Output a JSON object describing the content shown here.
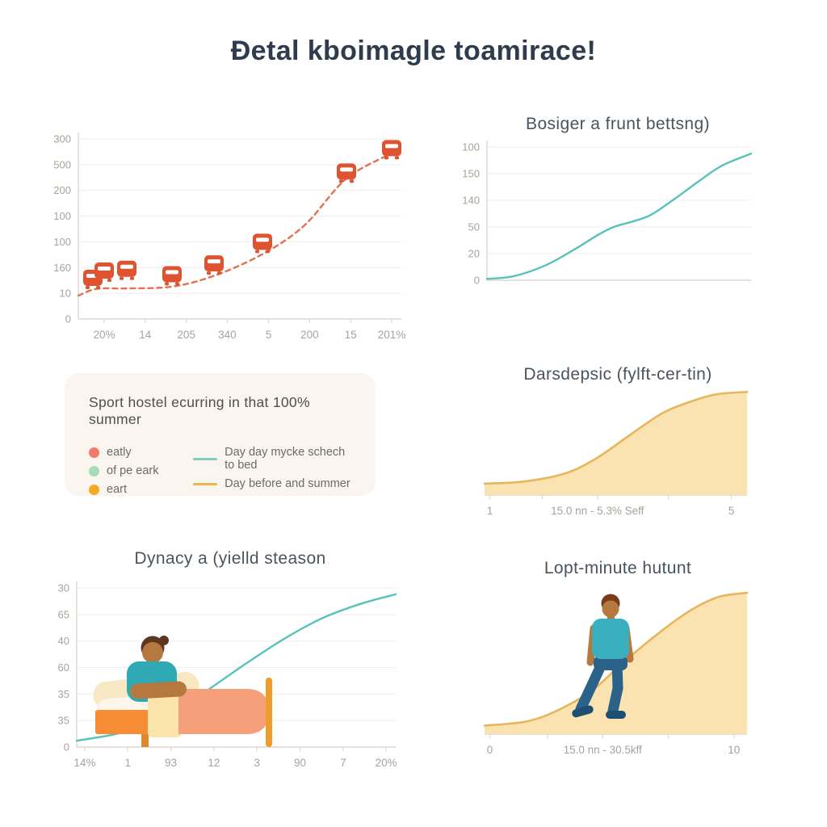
{
  "page": {
    "title": "Ɖetal kboimagle toamirace!"
  },
  "colors": {
    "background": "#ffffff",
    "title": "#2e3c4e",
    "chart_title": "#4a545e",
    "tick_label": "#a8a29a",
    "gridline": "#f1eeea",
    "axis": "#ddd7d0",
    "bus_line": "#e2714f",
    "bus_body": "#df5330",
    "teal_line": "#56c2ba",
    "area_fill": "#fae3b0",
    "area_stroke": "#e7b65c",
    "legend_bg": "#faf5ee"
  },
  "legend": {
    "title": "Sport hostel ecurring in that 100% summer",
    "dot_items": [
      {
        "label": "eatly",
        "color": "#f4796b"
      },
      {
        "label": "of pe eark",
        "color": "#a7dcb9"
      },
      {
        "label": "eart",
        "color": "#f5a823"
      }
    ],
    "line_items": [
      {
        "label": "Day day mycke schech to bed",
        "color": "#82cec5"
      },
      {
        "label": "Day before and summer",
        "color": "#f2b14e"
      }
    ]
  },
  "chart_data": [
    {
      "id": "bus",
      "type": "scatter",
      "title": "",
      "y_ticks": [
        "300",
        "500",
        "200",
        "100",
        "100",
        "160",
        "10",
        "0"
      ],
      "x_ticks": [
        "20%",
        "14",
        "205",
        "340",
        "5",
        "200",
        "15",
        "201%"
      ],
      "x_tick_pos": [
        8,
        20.7,
        33.4,
        46.1,
        58.9,
        71.6,
        84.3,
        97
      ],
      "curve": [
        [
          0,
          13
        ],
        [
          4,
          16
        ],
        [
          7.5,
          17
        ],
        [
          15,
          17
        ],
        [
          29,
          18
        ],
        [
          42,
          24
        ],
        [
          57,
          36
        ],
        [
          70,
          52
        ],
        [
          83,
          78
        ],
        [
          97,
          92
        ]
      ],
      "points": [
        [
          4.5,
          22
        ],
        [
          8,
          26
        ],
        [
          15,
          27
        ],
        [
          29,
          24
        ],
        [
          42,
          30
        ],
        [
          57,
          42
        ],
        [
          83,
          81
        ],
        [
          97,
          94
        ]
      ],
      "marker": "bus",
      "dashed": true,
      "color": "#e2714f",
      "marker_color": "#df5330",
      "ylim": [
        "0",
        "300"
      ],
      "grid": true,
      "legend_position": "none"
    },
    {
      "id": "teal",
      "type": "line",
      "title": "Bosiger a frunt bettsng)",
      "y_ticks": [
        "100",
        "150",
        "140",
        "50",
        "20",
        "0"
      ],
      "x_ticks": [],
      "curve": [
        [
          0,
          1
        ],
        [
          10,
          3
        ],
        [
          22,
          11
        ],
        [
          33,
          23
        ],
        [
          42,
          34
        ],
        [
          48,
          40
        ],
        [
          55,
          44
        ],
        [
          62,
          49
        ],
        [
          71,
          61
        ],
        [
          80,
          74
        ],
        [
          89,
          86
        ],
        [
          100,
          95
        ]
      ],
      "color": "#56c2ba",
      "ylim": [
        "0",
        "100"
      ],
      "grid": true,
      "legend_position": "none"
    },
    {
      "id": "area1",
      "type": "area",
      "title": "Darsdepsic (fylft-cer-tin)",
      "y_ticks": [],
      "x_ticks": [
        "1",
        "15.0 nn - 5.3% Seff",
        "5"
      ],
      "x_tick_pos": [
        2,
        43,
        94
      ],
      "minor_tick_pos": [
        2,
        22,
        43,
        70,
        94
      ],
      "curve": [
        [
          0,
          11
        ],
        [
          15,
          13
        ],
        [
          31,
          21
        ],
        [
          43,
          36
        ],
        [
          55,
          57
        ],
        [
          68,
          79
        ],
        [
          80,
          91
        ],
        [
          89,
          97
        ],
        [
          100,
          99
        ]
      ],
      "fill": "#fae3b0",
      "stroke": "#e7b65c",
      "grid": false,
      "legend_position": "none"
    },
    {
      "id": "bed",
      "type": "line",
      "title": "Dynacy a (yielld steason",
      "y_ticks": [
        "30",
        "65",
        "40",
        "60",
        "35",
        "35",
        "0"
      ],
      "x_ticks": [
        "14%",
        "1",
        "93",
        "12",
        "3",
        "90",
        "7",
        "20%"
      ],
      "x_tick_pos": [
        2.5,
        16,
        29.5,
        43,
        56.5,
        70,
        83.5,
        97
      ],
      "curve": [
        [
          0,
          4
        ],
        [
          14,
          9
        ],
        [
          27,
          18
        ],
        [
          39,
          33
        ],
        [
          52,
          51
        ],
        [
          65,
          68
        ],
        [
          77,
          81
        ],
        [
          89,
          90
        ],
        [
          100,
          96
        ]
      ],
      "color": "#56c2ba",
      "ylim": [
        "0",
        "30"
      ],
      "grid": true,
      "annotation": "person sleeping in bed illustration",
      "legend_position": "none"
    },
    {
      "id": "area2",
      "type": "area",
      "title": "Lopt-minute hutunt",
      "y_ticks": [],
      "x_ticks": [
        "0",
        "15.0 nn - 30.5kff",
        "10"
      ],
      "x_tick_pos": [
        2,
        45,
        95
      ],
      "minor_tick_pos": [
        2,
        24,
        45,
        70,
        95
      ],
      "curve": [
        [
          0,
          6
        ],
        [
          16,
          9
        ],
        [
          28,
          17
        ],
        [
          41,
          31
        ],
        [
          53,
          51
        ],
        [
          66,
          71
        ],
        [
          78,
          87
        ],
        [
          89,
          97
        ],
        [
          100,
          100
        ]
      ],
      "fill": "#fae3b0",
      "stroke": "#e7b65c",
      "grid": false,
      "annotation": "person walking uphill illustration",
      "legend_position": "none"
    }
  ],
  "illustrations": {
    "bed": {
      "frame": "#f68d35",
      "leg": "#dd8a2e",
      "pillow": "#f9e8c4",
      "pillow2": "#fcf5e9",
      "band": "#fbe4ac",
      "blanket": "#f5a07b",
      "post": "#ef9d2a",
      "skin": "#b5793f",
      "hair": "#5d3620",
      "shirt": "#2fa9b4"
    },
    "walker": {
      "skin": "#b5793f",
      "hair": "#7a3d1b",
      "shirt": "#3ab0bf",
      "pants": "#2b6289",
      "shoes": "#1d4f73"
    }
  }
}
